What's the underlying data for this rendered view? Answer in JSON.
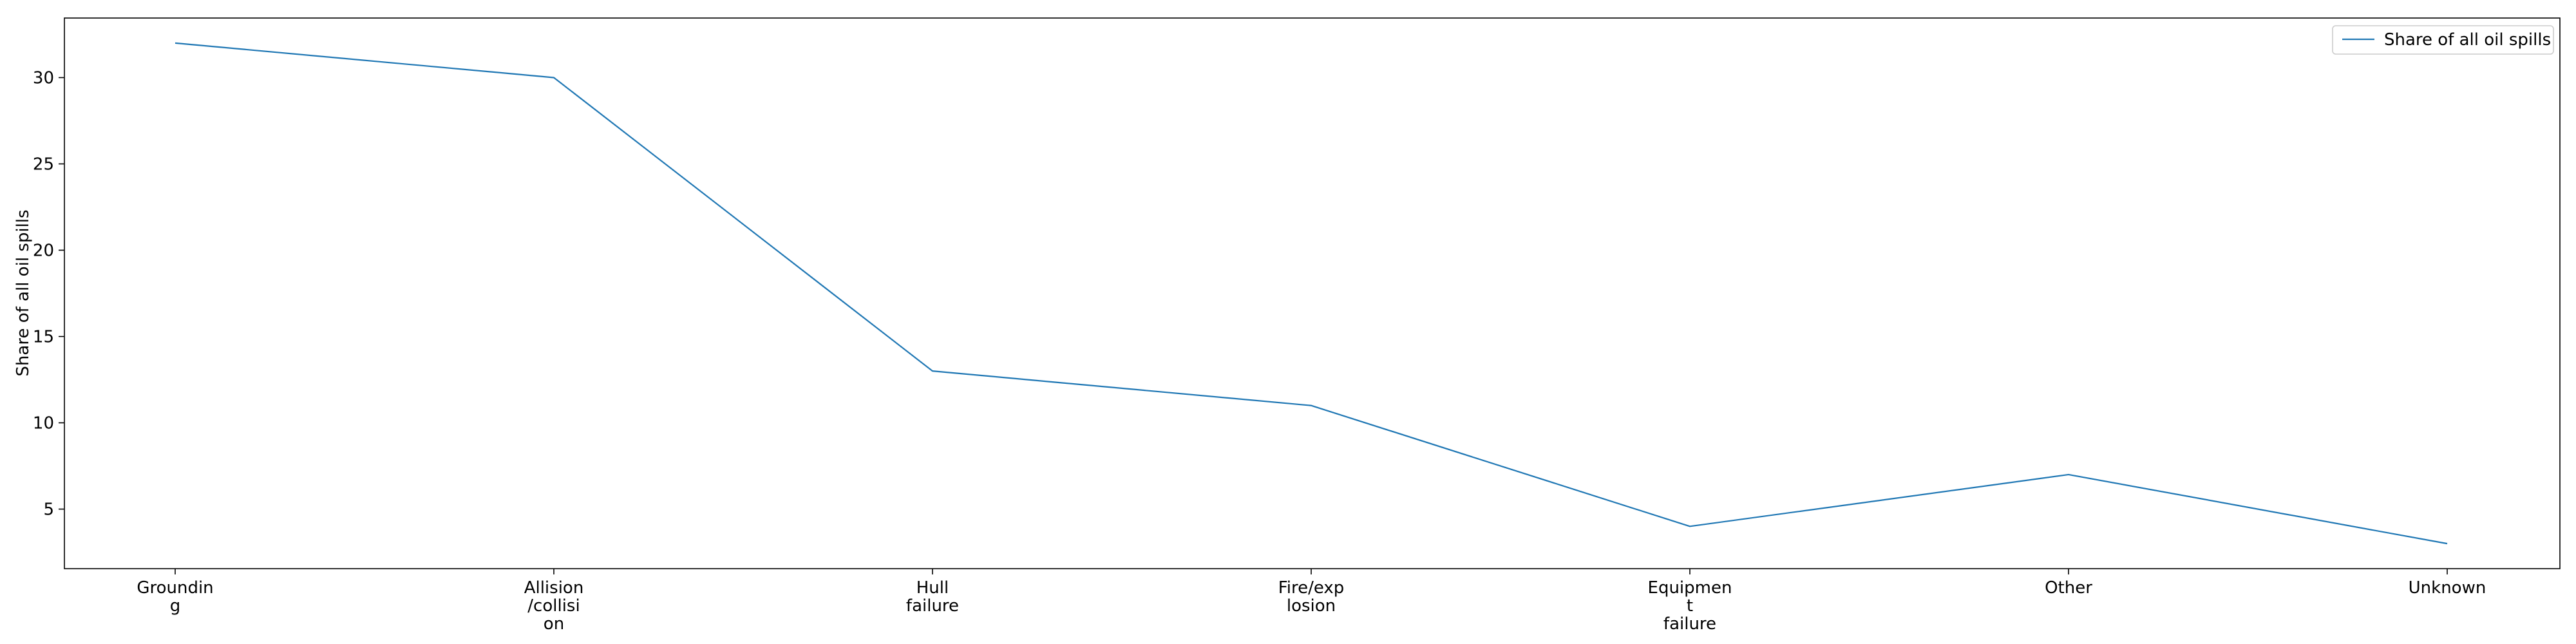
{
  "chart_data": {
    "type": "line",
    "categories": [
      "Grounding",
      "Allision/collision",
      "Hull failure",
      "Fire/explosion",
      "Equipment failure",
      "Other",
      "Unknown"
    ],
    "category_tick_lines": [
      [
        "Groundin",
        "g"
      ],
      [
        "Allision",
        "/collisi",
        "on"
      ],
      [
        "Hull",
        "failure"
      ],
      [
        "Fire/exp",
        "losion"
      ],
      [
        "Equipmen",
        "t",
        "failure"
      ],
      [
        "Other"
      ],
      [
        "Unknown"
      ]
    ],
    "series": [
      {
        "name": "Share of all oil spills",
        "values": [
          32,
          30,
          13,
          11,
          4,
          7,
          3
        ],
        "color": "#1f77b4"
      }
    ],
    "ylabel": "Share of all oil spills",
    "yticks": [
      5,
      10,
      15,
      20,
      25,
      30
    ],
    "ylim": [
      1.55,
      33.45
    ],
    "grid": false,
    "legend_position": "top-right"
  }
}
